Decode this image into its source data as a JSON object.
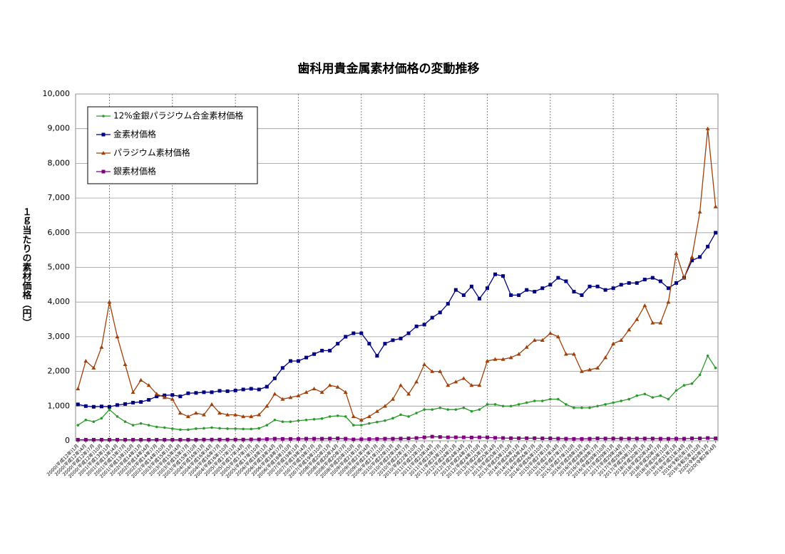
{
  "chart_data": {
    "type": "line",
    "title": "歯科用貴金属素材価格の変動推移",
    "y_label": "１ｇ当たりの素材価格（円）",
    "categories": [
      "2000(平成12年)1月",
      "2000(平成12年)4月",
      "2000(平成12年)7月",
      "2000(平成12年)10月",
      "2001(平成13年)1月",
      "2001(平成13年)4月",
      "2001(平成13年)7月",
      "2001(平成13年)10月",
      "2002(平成14年)1月",
      "2002(平成14年)4月",
      "2002(平成14年)7月",
      "2002(平成14年)10月",
      "2003(平成15年)1月",
      "2003(平成15年)4月",
      "2003(平成15年)7月",
      "2003(平成15年)10月",
      "2004(平成16年)1月",
      "2004(平成16年)4月",
      "2004(平成16年)7月",
      "2004(平成16年)10月",
      "2005(平成17年)1月",
      "2005(平成17年)4月",
      "2005(平成17年)7月",
      "2005(平成17年)10月",
      "2006(平成18年)1月",
      "2006(平成18年)4月",
      "2006(平成18年)7月",
      "2006(平成18年)10月",
      "2007(平成19年)1月",
      "2007(平成19年)4月",
      "2007(平成19年)7月",
      "2007(平成19年)10月",
      "2008(平成20年)1月",
      "2008(平成20年)4月",
      "2008(平成20年)7月",
      "2008(平成20年)10月",
      "2009(平成21年)1月",
      "2009(平成21年)4月",
      "2009(平成21年)7月",
      "2009(平成21年)10月",
      "2010(平成22年)1月",
      "2010(平成22年)4月",
      "2010(平成22年)7月",
      "2010(平成22年)10月",
      "2011(平成23年)1月",
      "2011(平成23年)4月",
      "2011(平成23年)7月",
      "2011(平成23年)10月",
      "2012(平成24年)1月",
      "2012(平成24年)4月",
      "2012(平成24年)7月",
      "2012(平成24年)10月",
      "2013(平成25年)1月",
      "2013(平成25年)4月",
      "2013(平成25年)7月",
      "2013(平成25年)10月",
      "2014(平成26年)1月",
      "2014(平成26年)4月",
      "2014(平成26年)7月",
      "2014(平成26年)10月",
      "2015(平成27年)1月",
      "2015(平成27年)4月",
      "2015(平成27年)7月",
      "2015(平成27年)10月",
      "2016(平成28年)1月",
      "2016(平成28年)4月",
      "2016(平成28年)7月",
      "2016(平成28年)10月",
      "2017(平成29年)1月",
      "2017(平成29年)4月",
      "2017(平成29年)7月",
      "2017(平成29年)10月",
      "2018(平成30年)1月",
      "2018(平成30年)4月",
      "2018(平成30年)7月",
      "2018(平成30年)10月",
      "2019(平成31年)1月",
      "2019(平成31年)4月",
      "2019(令和元年)7月",
      "2019(令和元年)10月",
      "2020(令和2年)1月",
      "2020(令和2年)4月"
    ],
    "series": [
      {
        "name": "12%金銀パラジウム合金素材価格",
        "color": "#2a9a2a",
        "marker": "dot",
        "values": [
          450,
          600,
          550,
          650,
          900,
          700,
          550,
          450,
          500,
          450,
          400,
          380,
          350,
          320,
          320,
          350,
          360,
          380,
          360,
          350,
          350,
          340,
          340,
          360,
          450,
          600,
          550,
          550,
          580,
          600,
          620,
          640,
          700,
          720,
          700,
          450,
          450,
          500,
          540,
          580,
          650,
          750,
          700,
          800,
          900,
          900,
          950,
          900,
          900,
          950,
          850,
          900,
          1050,
          1050,
          1000,
          1000,
          1050,
          1100,
          1150,
          1150,
          1200,
          1200,
          1050,
          950,
          950,
          950,
          1000,
          1050,
          1100,
          1150,
          1200,
          1300,
          1350,
          1250,
          1300,
          1200,
          1450,
          1600,
          1650,
          1900,
          2450,
          2100
        ]
      },
      {
        "name": "金素材価格",
        "color": "#000080",
        "marker": "square",
        "values": [
          1050,
          1000,
          980,
          990,
          980,
          1030,
          1060,
          1100,
          1120,
          1180,
          1280,
          1310,
          1320,
          1280,
          1370,
          1380,
          1400,
          1400,
          1440,
          1430,
          1450,
          1480,
          1500,
          1480,
          1560,
          1800,
          2100,
          2300,
          2300,
          2400,
          2500,
          2600,
          2600,
          2800,
          3000,
          3100,
          3100,
          2800,
          2450,
          2800,
          2900,
          2950,
          3100,
          3300,
          3350,
          3550,
          3700,
          3950,
          4350,
          4200,
          4450,
          4100,
          4400,
          4800,
          4750,
          4200,
          4200,
          4350,
          4300,
          4400,
          4500,
          4700,
          4600,
          4300,
          4200,
          4450,
          4450,
          4350,
          4400,
          4500,
          4550,
          4550,
          4650,
          4700,
          4600,
          4400,
          4550,
          4700,
          5200,
          5300,
          5600,
          6000
        ]
      },
      {
        "name": "パラジウム素材価格",
        "color": "#a0400a",
        "marker": "triangle",
        "values": [
          1500,
          2300,
          2100,
          2700,
          4000,
          3000,
          2200,
          1400,
          1750,
          1600,
          1350,
          1250,
          1200,
          800,
          700,
          800,
          750,
          1050,
          800,
          750,
          750,
          700,
          700,
          750,
          1000,
          1350,
          1200,
          1250,
          1300,
          1400,
          1500,
          1400,
          1600,
          1550,
          1400,
          700,
          600,
          700,
          850,
          1000,
          1200,
          1600,
          1350,
          1700,
          2200,
          2000,
          2000,
          1600,
          1700,
          1800,
          1600,
          1600,
          2300,
          2350,
          2350,
          2400,
          2500,
          2700,
          2900,
          2900,
          3100,
          3000,
          2500,
          2500,
          2000,
          2050,
          2100,
          2400,
          2800,
          2900,
          3200,
          3500,
          3900,
          3400,
          3400,
          4000,
          5400,
          4700,
          5300,
          6600,
          9000,
          6750
        ]
      },
      {
        "name": "銀素材価格",
        "color": "#800080",
        "marker": "square",
        "values": [
          30,
          30,
          30,
          30,
          30,
          30,
          30,
          30,
          30,
          30,
          30,
          30,
          30,
          30,
          30,
          30,
          35,
          35,
          35,
          35,
          35,
          35,
          40,
          40,
          50,
          60,
          55,
          55,
          55,
          60,
          60,
          60,
          65,
          70,
          60,
          40,
          45,
          50,
          55,
          60,
          60,
          65,
          70,
          80,
          100,
          120,
          110,
          100,
          100,
          100,
          95,
          100,
          100,
          85,
          80,
          75,
          75,
          75,
          75,
          70,
          70,
          65,
          60,
          55,
          55,
          60,
          70,
          65,
          65,
          65,
          65,
          65,
          65,
          65,
          60,
          60,
          60,
          60,
          70,
          70,
          80,
          70
        ]
      }
    ],
    "ylim": [
      0,
      10000
    ],
    "yticks": [
      0,
      {
        "value": 1000,
        "label": "1,000"
      },
      {
        "value": 2000,
        "label": "2,000"
      },
      {
        "value": 3000,
        "label": "3,000"
      },
      {
        "value": 4000,
        "label": "4,000"
      },
      {
        "value": 5000,
        "label": "5,000"
      },
      {
        "value": 6000,
        "label": "6,000"
      },
      {
        "value": 7000,
        "label": "7,000"
      },
      {
        "value": 8000,
        "label": "8,000"
      },
      {
        "value": 9000,
        "label": "9,000"
      },
      {
        "value": 10000,
        "label": "10,000"
      }
    ],
    "grid": true,
    "legend": "upper-left"
  }
}
